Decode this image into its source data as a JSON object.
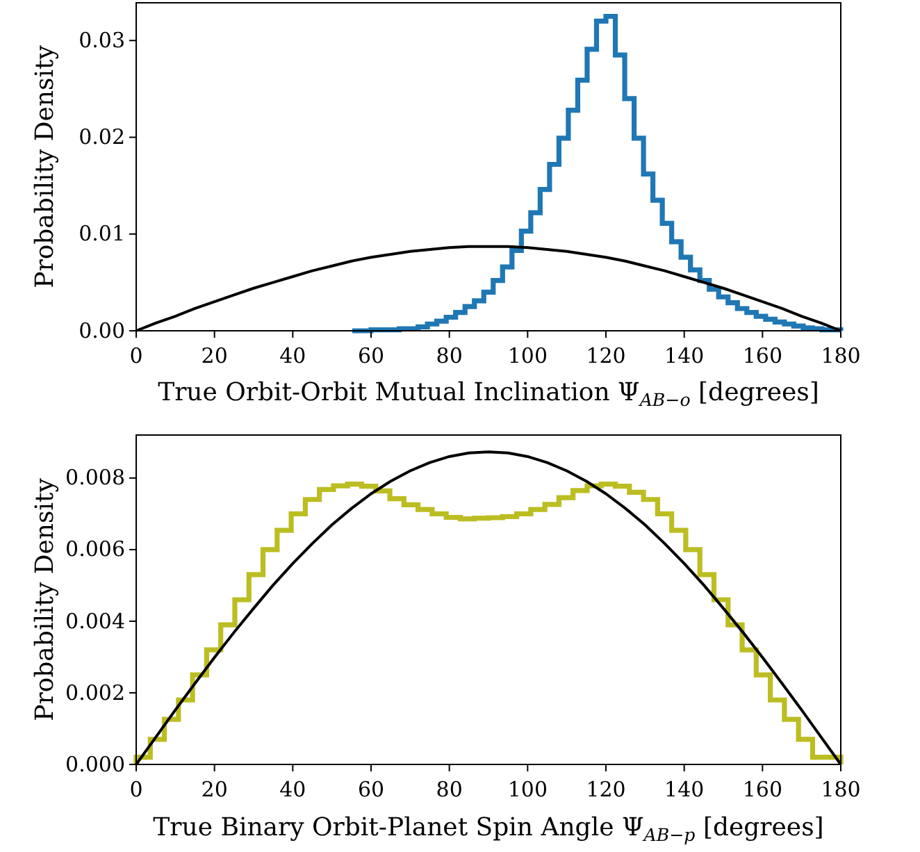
{
  "chart_data": [
    {
      "type": "histogram",
      "xlabel": "True Orbit-Orbit Mutual Inclination Ψ$_{AB−o}$ [degrees]",
      "ylabel": "Probability Density",
      "xlim": [
        0,
        180
      ],
      "ylim": [
        0,
        0.0339
      ],
      "xticks": [
        0,
        20,
        40,
        60,
        80,
        100,
        120,
        140,
        160,
        180
      ],
      "yticks": [
        {
          "value": 0,
          "label": "0.00"
        },
        {
          "value": 0.01,
          "label": "0.01"
        },
        {
          "value": 0.02,
          "label": "0.02"
        },
        {
          "value": 0.03,
          "label": "0.03"
        }
      ],
      "series": [
        {
          "color": "#1f77b4",
          "bins": [
            55.2,
            57.6,
            60,
            62.4,
            64.8,
            67.2,
            69.6,
            72,
            74.4,
            76.8,
            79.2,
            81.6,
            84,
            86.4,
            88.8,
            91.2,
            93.6,
            96,
            98.4,
            100.8,
            103.2,
            105.6,
            108,
            110.4,
            112.8,
            115.2,
            117.6,
            120,
            122.4,
            124.8,
            127.2,
            129.6,
            132,
            134.4,
            136.8,
            139.2,
            141.6,
            144,
            146.4,
            148.8,
            151.2,
            153.6,
            156,
            158.4,
            160.8,
            163.2,
            165.6,
            168,
            170.4,
            172.8,
            175.2,
            177.6,
            180
          ],
          "values": [
            0,
            0,
            0.0001,
            0.0001,
            0.0001,
            0.0002,
            0.0002,
            0.0004,
            0.0007,
            0.001,
            0.0014,
            0.0019,
            0.0025,
            0.0031,
            0.004,
            0.0052,
            0.0066,
            0.0083,
            0.0103,
            0.0122,
            0.0146,
            0.0172,
            0.0199,
            0.0228,
            0.0259,
            0.0291,
            0.032,
            0.0325,
            0.0285,
            0.024,
            0.0199,
            0.0162,
            0.0135,
            0.0111,
            0.0092,
            0.0076,
            0.0063,
            0.0052,
            0.0043,
            0.0035,
            0.0029,
            0.0023,
            0.0019,
            0.0015,
            0.0012,
            0.0009,
            0.0007,
            0.0005,
            0.0003,
            0.0002,
            0.0001,
            0.0001
          ]
        },
        {
          "type": "line",
          "color": "#000000",
          "x": [
            0,
            5,
            10,
            15,
            20,
            25,
            30,
            35,
            40,
            45,
            50,
            55,
            60,
            65,
            70,
            75,
            80,
            85,
            90,
            95,
            100,
            105,
            110,
            115,
            120,
            125,
            130,
            135,
            140,
            145,
            150,
            155,
            160,
            165,
            170,
            175,
            180
          ],
          "values": [
            0,
            0.0008,
            0.0015,
            0.0023,
            0.003,
            0.0037,
            0.0044,
            0.005,
            0.0056,
            0.0062,
            0.0067,
            0.0072,
            0.0076,
            0.0079,
            0.0082,
            0.0084,
            0.0086,
            0.0087,
            0.0087,
            0.0087,
            0.0086,
            0.0084,
            0.0082,
            0.0079,
            0.0076,
            0.0072,
            0.0067,
            0.0062,
            0.0056,
            0.005,
            0.0044,
            0.0037,
            0.003,
            0.0023,
            0.0015,
            0.0008,
            0
          ]
        }
      ]
    },
    {
      "type": "histogram",
      "xlabel": "True Binary Orbit-Planet Spin Angle Ψ$_{AB−p}$ [degrees]",
      "ylabel": "Probability Density",
      "xlim": [
        0,
        180
      ],
      "ylim": [
        0,
        0.0092
      ],
      "xticks": [
        0,
        20,
        40,
        60,
        80,
        100,
        120,
        140,
        160,
        180
      ],
      "yticks": [
        {
          "value": 0,
          "label": "0.000"
        },
        {
          "value": 0.002,
          "label": "0.002"
        },
        {
          "value": 0.004,
          "label": "0.004"
        },
        {
          "value": 0.006,
          "label": "0.006"
        },
        {
          "value": 0.008,
          "label": "0.008"
        }
      ],
      "series": [
        {
          "color": "#bcbd22",
          "bins": [
            0,
            3.6,
            7.2,
            10.8,
            14.4,
            18,
            21.6,
            25.2,
            28.8,
            32.4,
            36,
            39.6,
            43.2,
            46.8,
            50.4,
            54,
            57.6,
            61.2,
            64.8,
            68.4,
            72,
            75.6,
            79.2,
            82.8,
            86.4,
            90,
            93.6,
            97.2,
            100.8,
            104.4,
            108,
            111.6,
            115.2,
            118.8,
            122.4,
            126,
            129.6,
            133.2,
            136.8,
            140.4,
            144,
            147.6,
            151.2,
            154.8,
            158.4,
            162,
            165.6,
            169.2,
            172.8,
            176.4,
            180
          ],
          "values": [
            0.0002,
            0.0007,
            0.00126,
            0.0018,
            0.0025,
            0.0032,
            0.0039,
            0.0046,
            0.0053,
            0.006,
            0.00654,
            0.007,
            0.0074,
            0.00768,
            0.00778,
            0.00783,
            0.00777,
            0.00764,
            0.00742,
            0.00725,
            0.00712,
            0.007,
            0.0069,
            0.00686,
            0.00688,
            0.00689,
            0.00692,
            0.007,
            0.00712,
            0.00726,
            0.00745,
            0.00765,
            0.00778,
            0.00783,
            0.00777,
            0.0076,
            0.0074,
            0.007,
            0.00654,
            0.006,
            0.0053,
            0.0046,
            0.0039,
            0.0032,
            0.0025,
            0.0018,
            0.00126,
            0.0007,
            0.0002,
            0.0002
          ]
        },
        {
          "type": "line",
          "color": "#000000",
          "x": [
            0,
            5,
            10,
            15,
            20,
            25,
            30,
            35,
            40,
            45,
            50,
            55,
            60,
            65,
            70,
            75,
            80,
            85,
            90,
            95,
            100,
            105,
            110,
            115,
            120,
            125,
            130,
            135,
            140,
            145,
            150,
            155,
            160,
            165,
            170,
            175,
            180
          ],
          "values": [
            0,
            0.00076,
            0.00152,
            0.00226,
            0.00299,
            0.00369,
            0.00436,
            0.00501,
            0.00561,
            0.00617,
            0.00669,
            0.00715,
            0.00756,
            0.00791,
            0.0082,
            0.00843,
            0.0086,
            0.0087,
            0.00873,
            0.0087,
            0.0086,
            0.00843,
            0.0082,
            0.00791,
            0.00756,
            0.00715,
            0.00669,
            0.00617,
            0.00561,
            0.00501,
            0.00436,
            0.00369,
            0.00299,
            0.00226,
            0.00152,
            0.00076,
            0
          ]
        }
      ]
    }
  ]
}
